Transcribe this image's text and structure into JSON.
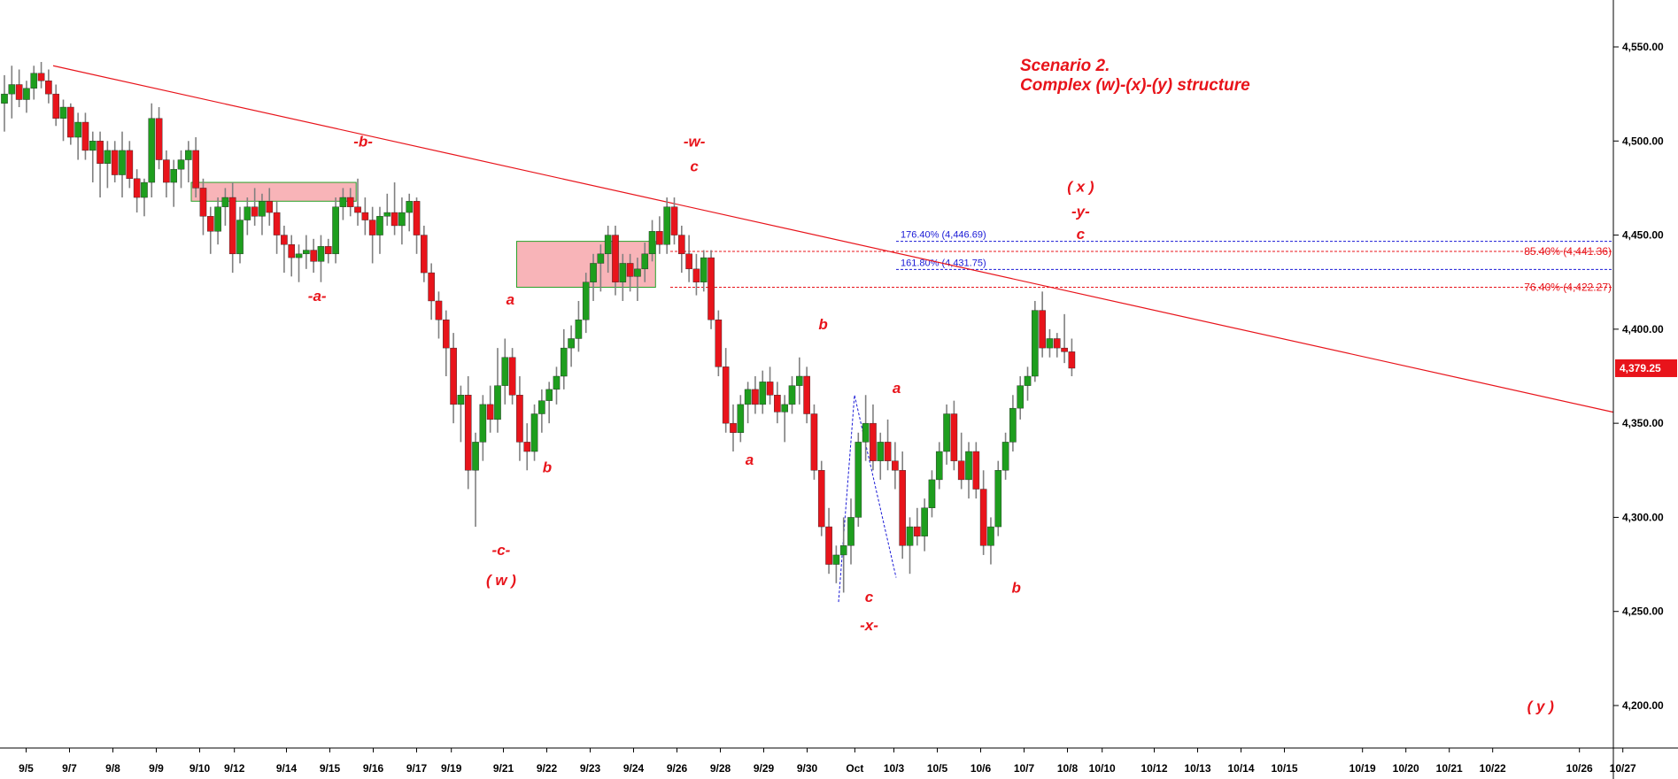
{
  "chart_data": {
    "type": "candlestick",
    "title": "Scenario 2.",
    "subtitle": "Complex (w)-(x)-(y) structure",
    "y_axis": {
      "ticks": [
        "4,200.00",
        "4,250.00",
        "4,300.00",
        "4,350.00",
        "4,400.00",
        "4,450.00",
        "4,500.00",
        "4,550.00"
      ],
      "values": [
        4200,
        4250,
        4300,
        4350,
        4400,
        4450,
        4500,
        4550
      ],
      "range": [
        4150,
        4580
      ]
    },
    "x_axis": {
      "ticks": [
        "9/5",
        "9/7",
        "9/8",
        "9/9",
        "9/10",
        "9/12",
        "9/14",
        "9/15",
        "9/16",
        "9/17",
        "9/19",
        "9/21",
        "9/22",
        "9/23",
        "9/24",
        "9/26",
        "9/28",
        "9/29",
        "9/30",
        "Oct",
        "10/3",
        "10/5",
        "10/6",
        "10/7",
        "10/8",
        "10/10",
        "10/12",
        "10/13",
        "10/14",
        "10/15",
        "10/19",
        "10/20",
        "10/21",
        "10/22",
        "10/26",
        "10/27"
      ],
      "tick_bar_index": [
        5,
        15,
        25,
        35,
        45,
        53,
        65,
        75,
        85,
        95,
        103,
        115,
        125,
        135,
        145,
        155,
        165,
        175,
        185,
        196,
        205,
        215,
        225,
        235,
        245,
        253,
        265,
        275,
        285,
        295,
        313,
        323,
        333,
        343,
        363,
        373
      ]
    },
    "last_price": "4,379.25",
    "last_price_value": 4379.25,
    "candles": [
      [
        4520,
        4535,
        4505,
        4525
      ],
      [
        4525,
        4540,
        4512,
        4530
      ],
      [
        4530,
        4538,
        4518,
        4522
      ],
      [
        4522,
        4532,
        4515,
        4528
      ],
      [
        4528,
        4540,
        4522,
        4536
      ],
      [
        4536,
        4542,
        4528,
        4532
      ],
      [
        4532,
        4538,
        4520,
        4525
      ],
      [
        4525,
        4530,
        4508,
        4512
      ],
      [
        4512,
        4522,
        4500,
        4518
      ],
      [
        4518,
        4520,
        4498,
        4502
      ],
      [
        4502,
        4515,
        4490,
        4510
      ],
      [
        4510,
        4515,
        4490,
        4495
      ],
      [
        4495,
        4505,
        4478,
        4500
      ],
      [
        4500,
        4505,
        4470,
        4488
      ],
      [
        4488,
        4500,
        4475,
        4495
      ],
      [
        4495,
        4500,
        4478,
        4482
      ],
      [
        4482,
        4505,
        4470,
        4495
      ],
      [
        4495,
        4500,
        4475,
        4480
      ],
      [
        4480,
        4485,
        4462,
        4470
      ],
      [
        4470,
        4480,
        4460,
        4478
      ],
      [
        4478,
        4520,
        4470,
        4512
      ],
      [
        4512,
        4518,
        4485,
        4490
      ],
      [
        4490,
        4495,
        4470,
        4478
      ],
      [
        4478,
        4490,
        4465,
        4485
      ],
      [
        4485,
        4495,
        4475,
        4490
      ],
      [
        4490,
        4500,
        4478,
        4495
      ],
      [
        4495,
        4502,
        4470,
        4475
      ],
      [
        4475,
        4480,
        4450,
        4460
      ],
      [
        4460,
        4465,
        4440,
        4452
      ],
      [
        4452,
        4470,
        4445,
        4465
      ],
      [
        4465,
        4475,
        4455,
        4470
      ],
      [
        4470,
        4478,
        4430,
        4440
      ],
      [
        4440,
        4465,
        4435,
        4458
      ],
      [
        4458,
        4470,
        4450,
        4465
      ],
      [
        4465,
        4475,
        4455,
        4460
      ],
      [
        4460,
        4472,
        4450,
        4468
      ],
      [
        4468,
        4475,
        4455,
        4462
      ],
      [
        4462,
        4468,
        4440,
        4450
      ],
      [
        4450,
        4455,
        4430,
        4445
      ],
      [
        4445,
        4450,
        4428,
        4438
      ],
      [
        4438,
        4445,
        4425,
        4440
      ],
      [
        4440,
        4450,
        4432,
        4442
      ],
      [
        4442,
        4448,
        4430,
        4436
      ],
      [
        4436,
        4450,
        4425,
        4444
      ],
      [
        4444,
        4448,
        4435,
        4440
      ],
      [
        4440,
        4470,
        4435,
        4465
      ],
      [
        4465,
        4475,
        4458,
        4470
      ],
      [
        4470,
        4475,
        4460,
        4465
      ],
      [
        4465,
        4480,
        4455,
        4462
      ],
      [
        4462,
        4470,
        4450,
        4458
      ],
      [
        4458,
        4465,
        4435,
        4450
      ],
      [
        4450,
        4465,
        4440,
        4460
      ],
      [
        4460,
        4472,
        4455,
        4462
      ],
      [
        4462,
        4478,
        4450,
        4455
      ],
      [
        4455,
        4470,
        4445,
        4462
      ],
      [
        4462,
        4472,
        4452,
        4468
      ],
      [
        4468,
        4470,
        4440,
        4450
      ],
      [
        4450,
        4455,
        4425,
        4430
      ],
      [
        4430,
        4435,
        4405,
        4415
      ],
      [
        4415,
        4420,
        4395,
        4405
      ],
      [
        4405,
        4410,
        4375,
        4390
      ],
      [
        4390,
        4398,
        4350,
        4360
      ],
      [
        4360,
        4370,
        4340,
        4365
      ],
      [
        4365,
        4375,
        4315,
        4325
      ],
      [
        4325,
        4345,
        4295,
        4340
      ],
      [
        4340,
        4365,
        4330,
        4360
      ],
      [
        4360,
        4370,
        4345,
        4352
      ],
      [
        4352,
        4390,
        4345,
        4370
      ],
      [
        4370,
        4395,
        4360,
        4385
      ],
      [
        4385,
        4390,
        4360,
        4365
      ],
      [
        4365,
        4375,
        4330,
        4340
      ],
      [
        4340,
        4350,
        4325,
        4335
      ],
      [
        4335,
        4360,
        4330,
        4355
      ],
      [
        4355,
        4368,
        4345,
        4362
      ],
      [
        4362,
        4372,
        4350,
        4368
      ],
      [
        4368,
        4380,
        4360,
        4375
      ],
      [
        4375,
        4400,
        4368,
        4390
      ],
      [
        4390,
        4402,
        4380,
        4395
      ],
      [
        4395,
        4415,
        4388,
        4405
      ],
      [
        4405,
        4430,
        4398,
        4425
      ],
      [
        4425,
        4440,
        4415,
        4435
      ],
      [
        4435,
        4445,
        4420,
        4440
      ],
      [
        4440,
        4455,
        4430,
        4450
      ],
      [
        4450,
        4455,
        4418,
        4425
      ],
      [
        4425,
        4440,
        4415,
        4435
      ],
      [
        4435,
        4440,
        4420,
        4428
      ],
      [
        4428,
        4438,
        4415,
        4432
      ],
      [
        4432,
        4446,
        4425,
        4440
      ],
      [
        4440,
        4458,
        4436,
        4452
      ],
      [
        4452,
        4460,
        4440,
        4445
      ],
      [
        4445,
        4470,
        4440,
        4465
      ],
      [
        4465,
        4470,
        4445,
        4450
      ],
      [
        4450,
        4455,
        4430,
        4440
      ],
      [
        4440,
        4450,
        4425,
        4432
      ],
      [
        4432,
        4440,
        4418,
        4425
      ],
      [
        4425,
        4442,
        4420,
        4438
      ],
      [
        4438,
        4442,
        4400,
        4405
      ],
      [
        4405,
        4410,
        4375,
        4380
      ],
      [
        4380,
        4390,
        4345,
        4350
      ],
      [
        4350,
        4360,
        4335,
        4345
      ],
      [
        4345,
        4365,
        4340,
        4360
      ],
      [
        4360,
        4372,
        4350,
        4368
      ],
      [
        4368,
        4375,
        4355,
        4360
      ],
      [
        4360,
        4378,
        4355,
        4372
      ],
      [
        4372,
        4380,
        4360,
        4365
      ],
      [
        4365,
        4372,
        4350,
        4356
      ],
      [
        4356,
        4365,
        4340,
        4360
      ],
      [
        4360,
        4375,
        4355,
        4370
      ],
      [
        4370,
        4385,
        4360,
        4375
      ],
      [
        4375,
        4380,
        4350,
        4355
      ],
      [
        4355,
        4360,
        4320,
        4325
      ],
      [
        4325,
        4330,
        4290,
        4295
      ],
      [
        4295,
        4305,
        4270,
        4275
      ],
      [
        4275,
        4285,
        4265,
        4280
      ],
      [
        4280,
        4300,
        4260,
        4285
      ],
      [
        4285,
        4310,
        4275,
        4300
      ],
      [
        4300,
        4345,
        4295,
        4340
      ],
      [
        4340,
        4365,
        4330,
        4350
      ],
      [
        4350,
        4360,
        4325,
        4330
      ],
      [
        4330,
        4345,
        4320,
        4340
      ],
      [
        4340,
        4352,
        4325,
        4330
      ],
      [
        4330,
        4340,
        4315,
        4325
      ],
      [
        4325,
        4335,
        4278,
        4285
      ],
      [
        4285,
        4300,
        4270,
        4295
      ],
      [
        4295,
        4305,
        4285,
        4290
      ],
      [
        4290,
        4310,
        4282,
        4305
      ],
      [
        4305,
        4325,
        4300,
        4320
      ],
      [
        4320,
        4340,
        4315,
        4335
      ],
      [
        4335,
        4360,
        4328,
        4355
      ],
      [
        4355,
        4362,
        4325,
        4330
      ],
      [
        4330,
        4345,
        4315,
        4320
      ],
      [
        4320,
        4340,
        4310,
        4335
      ],
      [
        4335,
        4340,
        4310,
        4315
      ],
      [
        4315,
        4325,
        4280,
        4285
      ],
      [
        4285,
        4300,
        4275,
        4295
      ],
      [
        4295,
        4330,
        4290,
        4325
      ],
      [
        4325,
        4345,
        4320,
        4340
      ],
      [
        4340,
        4365,
        4335,
        4358
      ],
      [
        4358,
        4375,
        4352,
        4370
      ],
      [
        4370,
        4380,
        4362,
        4375
      ],
      [
        4375,
        4415,
        4372,
        4410
      ],
      [
        4410,
        4420,
        4385,
        4390
      ],
      [
        4390,
        4400,
        4385,
        4395
      ],
      [
        4395,
        4398,
        4385,
        4390
      ],
      [
        4390,
        4408,
        4382,
        4388
      ],
      [
        4388,
        4395,
        4375,
        4379.25
      ]
    ],
    "trendline": {
      "from": {
        "bar": 5,
        "price": 4540
      },
      "to": {
        "bar": 180,
        "price": 4367
      }
    },
    "zones": [
      {
        "bar_start": 40,
        "bar_end": 78,
        "price_low": 4468,
        "price_high": 4478
      },
      {
        "bar_start": 115,
        "bar_end": 147,
        "price_low": 4422.27,
        "price_high": 4446.69
      }
    ],
    "fib_levels": [
      {
        "label": "176.40% (4,446.69)",
        "price": 4446.69,
        "color": "#1a1ad6",
        "side": "left"
      },
      {
        "label": "161.80% (4,431.75)",
        "price": 4431.75,
        "color": "#1a1ad6",
        "side": "left"
      },
      {
        "label": "85.40% (4,441.36)",
        "price": 4441.36,
        "color": "#e8141b",
        "side": "right"
      },
      {
        "label": "76.40% (4,422.27)",
        "price": 4422.27,
        "color": "#e8141b",
        "side": "right"
      }
    ],
    "wave_labels": [
      {
        "text": "-b-",
        "bar": 39,
        "price": 4497
      },
      {
        "text": "-a-",
        "bar": 34,
        "price": 4415
      },
      {
        "text": "a",
        "bar": 55,
        "price": 4413
      },
      {
        "text": "b",
        "bar": 59,
        "price": 4324
      },
      {
        "text": "-c-",
        "bar": 54,
        "price": 4280
      },
      {
        "text": "( w )",
        "bar": 54,
        "price": 4264
      },
      {
        "text": "-w-",
        "bar": 75,
        "price": 4497
      },
      {
        "text": "c",
        "bar": 75,
        "price": 4484
      },
      {
        "text": "a",
        "bar": 81,
        "price": 4328
      },
      {
        "text": "b",
        "bar": 89,
        "price": 4400
      },
      {
        "text": "a",
        "bar": 97,
        "price": 4366
      },
      {
        "text": "c",
        "bar": 94,
        "price": 4255
      },
      {
        "text": "-x-",
        "bar": 94,
        "price": 4240
      },
      {
        "text": "b",
        "bar": 110,
        "price": 4260
      },
      {
        "text": "( x )",
        "bar": 117,
        "price": 4473
      },
      {
        "text": "-y-",
        "bar": 117,
        "price": 4460
      },
      {
        "text": "c",
        "bar": 117,
        "price": 4448
      },
      {
        "text": "( y )",
        "bar": 167,
        "price": 4197
      }
    ]
  }
}
